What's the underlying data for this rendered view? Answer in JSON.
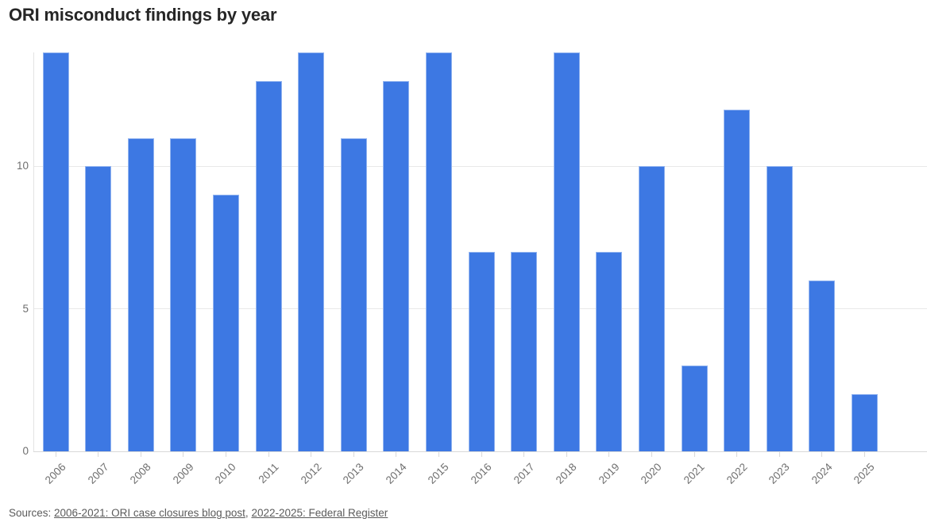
{
  "title": "ORI misconduct findings by year",
  "source": {
    "prefix": "Sources: ",
    "separator": ", ",
    "links": [
      {
        "text": "2006-2021: ORI case closures blog post"
      },
      {
        "text": "2022-2025: Federal Register"
      }
    ]
  },
  "chart_data": {
    "type": "bar",
    "title": "ORI misconduct findings by year",
    "categories": [
      "2006",
      "2007",
      "2008",
      "2009",
      "2010",
      "2011",
      "2012",
      "2013",
      "2014",
      "2015",
      "2016",
      "2017",
      "2018",
      "2019",
      "2020",
      "2021",
      "2022",
      "2023",
      "2024",
      "2025"
    ],
    "values": [
      14,
      10,
      11,
      11,
      9,
      13,
      14,
      11,
      13,
      14,
      7,
      7,
      14,
      7,
      10,
      3,
      12,
      10,
      6,
      2
    ],
    "xlabel": "",
    "ylabel": "",
    "ylim": [
      0,
      14
    ],
    "yticks": [
      0,
      5,
      10
    ],
    "grid": true,
    "legend": "none",
    "bar_color": "#3d78e3",
    "label_color": "#6e6e6e",
    "gridline_color": "#e9e9e9"
  }
}
